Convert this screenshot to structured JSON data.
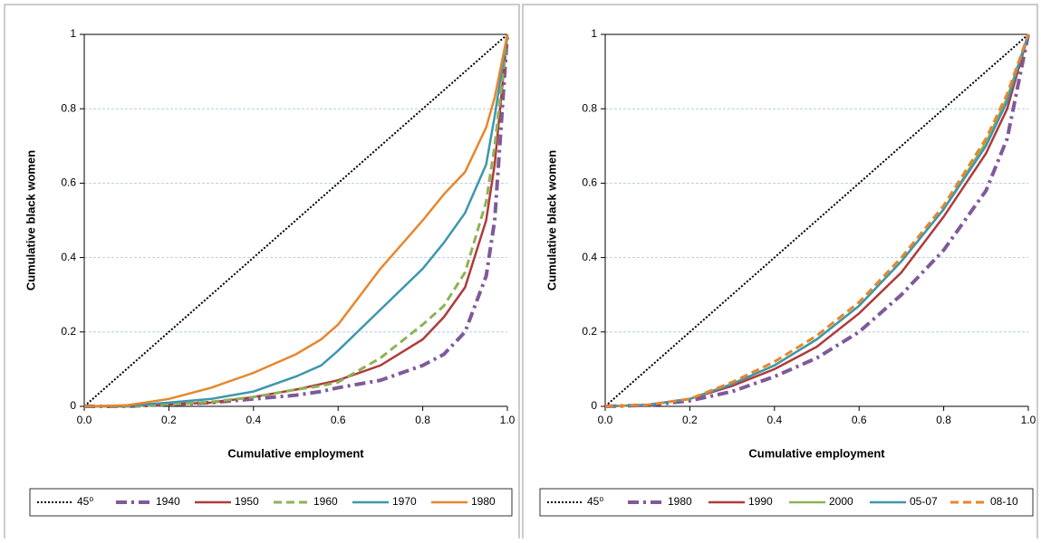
{
  "chart_data": [
    {
      "type": "line",
      "x_label": "Cumulative employment",
      "y_label": "Cumulative black women",
      "x": [
        0,
        0.1,
        0.2,
        0.3,
        0.4,
        0.5,
        0.56,
        0.6,
        0.7,
        0.8,
        0.85,
        0.9,
        0.95,
        0.97,
        1
      ],
      "xlim": [
        0,
        1
      ],
      "ylim": [
        0,
        1
      ],
      "xticks": [
        {
          "value": 0,
          "label": "0.0"
        },
        {
          "value": 0.2,
          "label": "0.2"
        },
        {
          "value": 0.4,
          "label": "0.4"
        },
        {
          "value": 0.6,
          "label": "0.6"
        },
        {
          "value": 0.8,
          "label": "0.8"
        },
        {
          "value": 1,
          "label": "1.0"
        }
      ],
      "yticks": [
        0,
        0.2,
        0.4,
        0.6,
        0.8,
        1
      ],
      "grid": true,
      "legend": "bottom",
      "series": [
        {
          "name": "45⁰",
          "color": "#000000",
          "dash": "dotted",
          "values": [
            0,
            0.1,
            0.2,
            0.3,
            0.4,
            0.5,
            0.56,
            0.6,
            0.7,
            0.8,
            0.85,
            0.9,
            0.95,
            0.97,
            1
          ]
        },
        {
          "name": "1940",
          "color": "#7e5a9b",
          "dash": "dashdot",
          "values": [
            0,
            0,
            0.005,
            0.01,
            0.02,
            0.03,
            0.04,
            0.05,
            0.07,
            0.11,
            0.14,
            0.2,
            0.35,
            0.5,
            1
          ]
        },
        {
          "name": "1950",
          "color": "#b03a3a",
          "dash": "solid",
          "values": [
            0,
            0,
            0.005,
            0.01,
            0.025,
            0.045,
            0.06,
            0.07,
            0.11,
            0.18,
            0.24,
            0.32,
            0.5,
            0.65,
            1
          ]
        },
        {
          "name": "1960",
          "color": "#8db255",
          "dash": "dashed",
          "values": [
            0,
            0,
            0.005,
            0.012,
            0.025,
            0.045,
            0.055,
            0.065,
            0.13,
            0.22,
            0.27,
            0.36,
            0.55,
            0.7,
            1
          ]
        },
        {
          "name": "1970",
          "color": "#3d97ae",
          "dash": "solid",
          "values": [
            0,
            0.002,
            0.01,
            0.02,
            0.04,
            0.08,
            0.11,
            0.15,
            0.26,
            0.37,
            0.44,
            0.52,
            0.65,
            0.78,
            1
          ]
        },
        {
          "name": "1980",
          "color": "#e8862c",
          "dash": "solid",
          "values": [
            0,
            0.003,
            0.02,
            0.05,
            0.09,
            0.14,
            0.18,
            0.22,
            0.37,
            0.5,
            0.57,
            0.63,
            0.75,
            0.83,
            1
          ]
        }
      ]
    },
    {
      "type": "line",
      "x_label": "Cumulative employment",
      "y_label": "Cumulative black women",
      "x": [
        0,
        0.1,
        0.2,
        0.3,
        0.4,
        0.5,
        0.6,
        0.7,
        0.8,
        0.9,
        0.95,
        1
      ],
      "xlim": [
        0,
        1
      ],
      "ylim": [
        0,
        1
      ],
      "xticks": [
        {
          "value": 0,
          "label": "0.0"
        },
        {
          "value": 0.2,
          "label": "0.2"
        },
        {
          "value": 0.4,
          "label": "0.4"
        },
        {
          "value": 0.6,
          "label": "0.6"
        },
        {
          "value": 0.8,
          "label": "0.8"
        },
        {
          "value": 1,
          "label": "1.0"
        }
      ],
      "yticks": [
        0,
        0.2,
        0.4,
        0.6,
        0.8,
        1
      ],
      "grid": true,
      "legend": "bottom",
      "series": [
        {
          "name": "45⁰",
          "color": "#000000",
          "dash": "dotted",
          "values": [
            0,
            0.1,
            0.2,
            0.3,
            0.4,
            0.5,
            0.6,
            0.7,
            0.8,
            0.9,
            0.95,
            1
          ]
        },
        {
          "name": "1980",
          "color": "#7e5a9b",
          "dash": "dashdot",
          "values": [
            0,
            0.003,
            0.015,
            0.04,
            0.08,
            0.13,
            0.2,
            0.3,
            0.42,
            0.58,
            0.72,
            1
          ]
        },
        {
          "name": "1990",
          "color": "#b03a3a",
          "dash": "solid",
          "values": [
            0,
            0.004,
            0.02,
            0.055,
            0.1,
            0.16,
            0.25,
            0.36,
            0.51,
            0.68,
            0.8,
            1
          ]
        },
        {
          "name": "2000",
          "color": "#8db255",
          "dash": "solid",
          "values": [
            0,
            0.004,
            0.02,
            0.06,
            0.11,
            0.18,
            0.27,
            0.39,
            0.53,
            0.71,
            0.83,
            1
          ]
        },
        {
          "name": "05-07",
          "color": "#3d97ae",
          "dash": "solid",
          "values": [
            0,
            0.004,
            0.02,
            0.06,
            0.11,
            0.18,
            0.27,
            0.39,
            0.53,
            0.7,
            0.82,
            1
          ]
        },
        {
          "name": "08-10",
          "color": "#e8862c",
          "dash": "dashed",
          "values": [
            0,
            0.004,
            0.02,
            0.065,
            0.12,
            0.19,
            0.28,
            0.4,
            0.54,
            0.72,
            0.84,
            1
          ]
        }
      ]
    }
  ]
}
